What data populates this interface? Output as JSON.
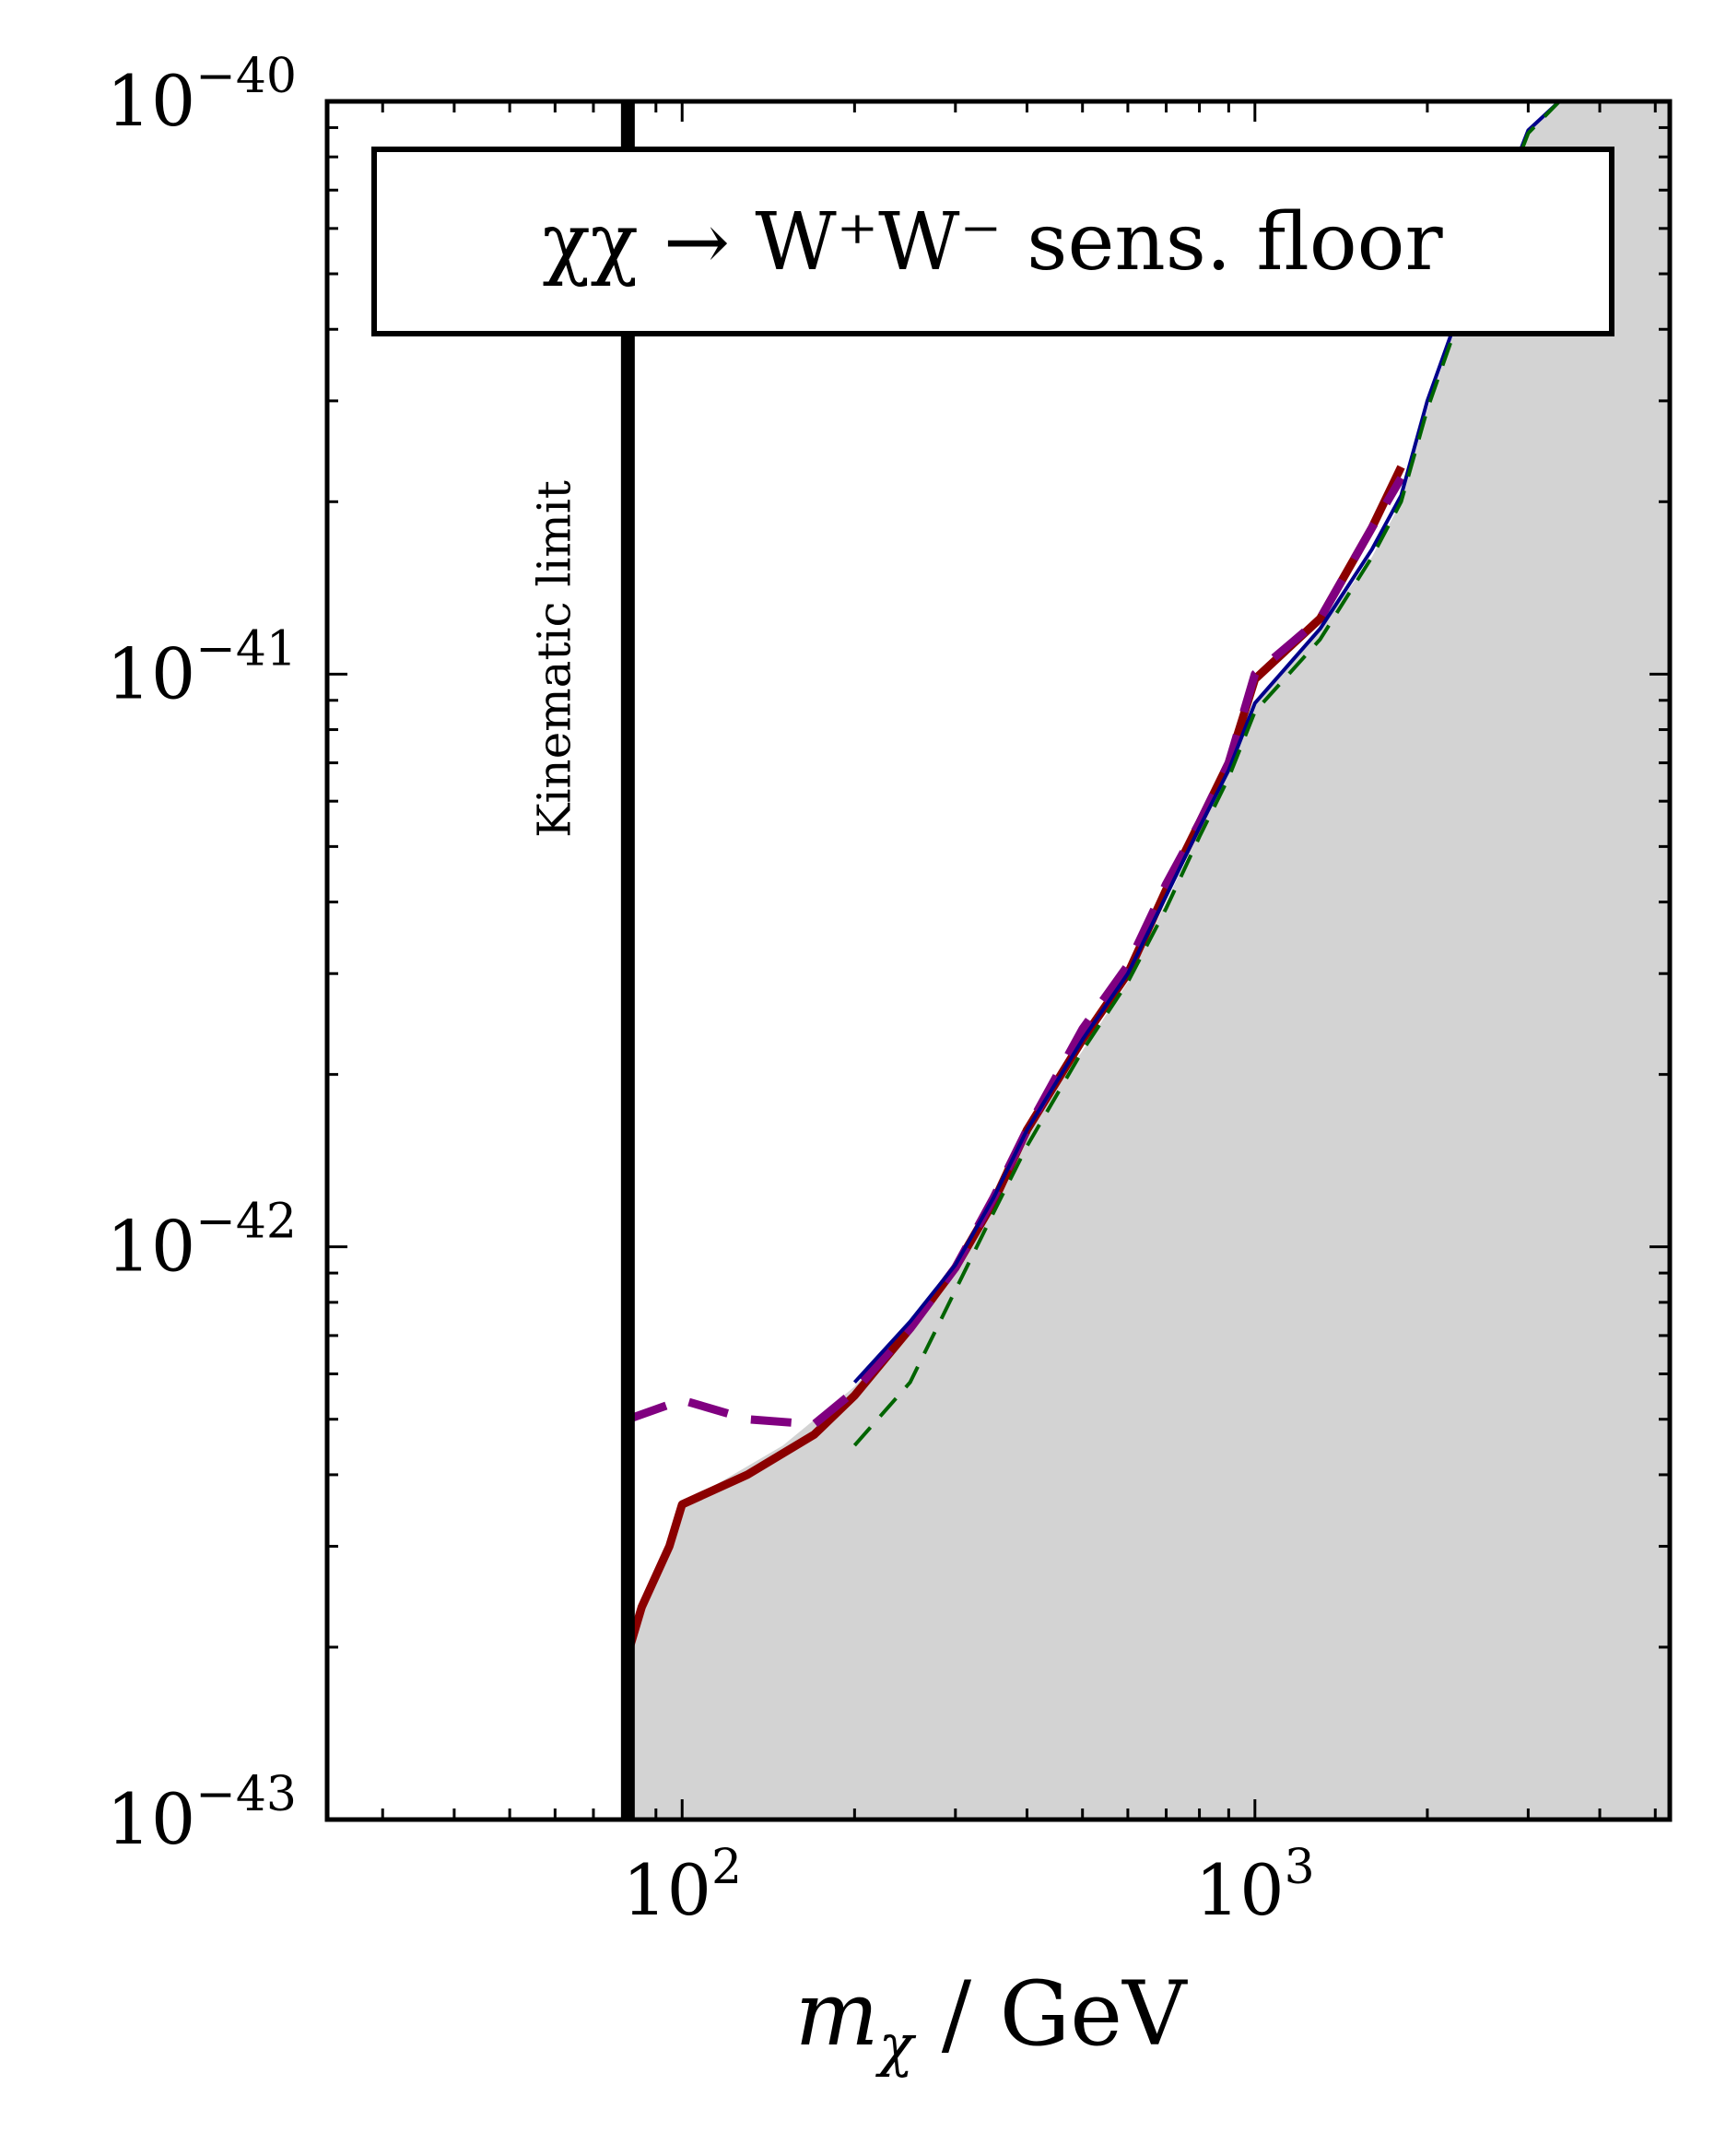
{
  "chart_data": {
    "type": "line",
    "title": "",
    "legend_box_text": "χχ → W⁺W⁻ sens. floor",
    "xlabel": "m_χ / GeV",
    "xlabel_main": "m",
    "xlabel_sub": "χ",
    "xlabel_rest": " / GeV",
    "ylabel": "",
    "xscale": "log",
    "yscale": "log",
    "xlim": [
      24,
      5300
    ],
    "ylim": [
      1e-43,
      1e-40
    ],
    "x_ticks": [
      {
        "value": 100,
        "base": "10",
        "exp": "2"
      },
      {
        "value": 1000,
        "base": "10",
        "exp": "3"
      }
    ],
    "y_ticks": [
      {
        "value": 1e-43,
        "base": "10",
        "exp": "−43"
      },
      {
        "value": 1e-42,
        "base": "10",
        "exp": "−42"
      },
      {
        "value": 1e-41,
        "base": "10",
        "exp": "−41"
      },
      {
        "value": 1e-40,
        "base": "10",
        "exp": "−40"
      }
    ],
    "grid": false,
    "vertical_line": {
      "x": 80.4,
      "label": "Kinematic limit"
    },
    "shaded_region": {
      "color": "#d3d3d3",
      "boundary": [
        [
          80.4,
          1.95e-43
        ],
        [
          85,
          2.35e-43
        ],
        [
          95,
          3e-43
        ],
        [
          100,
          3.55e-43
        ],
        [
          150,
          4.5e-43
        ],
        [
          200,
          5.7e-43
        ],
        [
          250,
          7.4e-43
        ],
        [
          300,
          9.3e-43
        ],
        [
          350,
          1.2e-42
        ],
        [
          400,
          1.6e-42
        ],
        [
          500,
          2.2e-42
        ],
        [
          600,
          2.9e-42
        ],
        [
          700,
          4e-42
        ],
        [
          800,
          5.3e-42
        ],
        [
          900,
          6.7e-42
        ],
        [
          1000,
          8.8e-42
        ],
        [
          1300,
          1.2e-41
        ],
        [
          1600,
          1.6e-41
        ],
        [
          1800,
          2e-41
        ],
        [
          2000,
          2.9e-41
        ],
        [
          2500,
          5.6e-41
        ],
        [
          3000,
          8.8e-41
        ],
        [
          3400,
          1e-40
        ],
        [
          5300,
          1e-40
        ]
      ]
    },
    "series": [
      {
        "color": "#8b0000",
        "style": "solid",
        "width": 9,
        "points": [
          [
            80.4,
            1.95e-43
          ],
          [
            85,
            2.35e-43
          ],
          [
            95,
            3e-43
          ],
          [
            100,
            3.55e-43
          ],
          [
            130,
            4e-43
          ],
          [
            170,
            4.7e-43
          ],
          [
            200,
            5.5e-43
          ],
          [
            250,
            7.2e-43
          ],
          [
            300,
            9.2e-43
          ],
          [
            350,
            1.2e-42
          ],
          [
            400,
            1.6e-42
          ],
          [
            500,
            2.3e-42
          ],
          [
            600,
            3e-42
          ],
          [
            700,
            4.2e-42
          ],
          [
            800,
            5.5e-42
          ],
          [
            900,
            7e-42
          ],
          [
            1000,
            9.8e-42
          ],
          [
            1300,
            1.25e-41
          ],
          [
            1600,
            1.8e-41
          ],
          [
            1800,
            2.3e-41
          ]
        ]
      },
      {
        "color": "#800080",
        "style": "dashed",
        "width": 9,
        "points": [
          [
            80.4,
            5e-43
          ],
          [
            100,
            5.4e-43
          ],
          [
            130,
            5e-43
          ],
          [
            170,
            4.9e-43
          ],
          [
            200,
            5.6e-43
          ],
          [
            250,
            7.2e-43
          ],
          [
            300,
            9.2e-43
          ],
          [
            350,
            1.22e-42
          ],
          [
            400,
            1.6e-42
          ],
          [
            500,
            2.4e-42
          ],
          [
            600,
            3.1e-42
          ],
          [
            700,
            4.3e-42
          ],
          [
            800,
            5.5e-42
          ],
          [
            900,
            7e-42
          ],
          [
            1000,
            1e-41
          ],
          [
            1300,
            1.25e-41
          ],
          [
            1600,
            1.8e-41
          ],
          [
            1800,
            2.2e-41
          ]
        ]
      },
      {
        "color": "#00008b",
        "style": "solid",
        "width": 4,
        "points": [
          [
            200,
            5.8e-43
          ],
          [
            250,
            7.4e-43
          ],
          [
            300,
            9.3e-43
          ],
          [
            350,
            1.22e-42
          ],
          [
            400,
            1.6e-42
          ],
          [
            500,
            2.3e-42
          ],
          [
            600,
            3e-42
          ],
          [
            700,
            4.1e-42
          ],
          [
            800,
            5.4e-42
          ],
          [
            900,
            6.8e-42
          ],
          [
            1000,
            8.9e-42
          ],
          [
            1300,
            1.2e-41
          ],
          [
            1600,
            1.65e-41
          ],
          [
            1800,
            2.05e-41
          ],
          [
            2000,
            3e-41
          ],
          [
            2500,
            5.6e-41
          ],
          [
            3000,
            8.9e-41
          ],
          [
            3400,
            1e-40
          ]
        ]
      },
      {
        "color": "#006400",
        "style": "dashed",
        "width": 4,
        "points": [
          [
            200,
            4.5e-43
          ],
          [
            250,
            5.8e-43
          ],
          [
            300,
            8.4e-43
          ],
          [
            350,
            1.15e-42
          ],
          [
            400,
            1.5e-42
          ],
          [
            500,
            2.2e-42
          ],
          [
            600,
            2.9e-42
          ],
          [
            700,
            3.9e-42
          ],
          [
            800,
            5.2e-42
          ],
          [
            900,
            6.6e-42
          ],
          [
            1000,
            8.6e-42
          ],
          [
            1300,
            1.15e-41
          ],
          [
            1600,
            1.6e-41
          ],
          [
            1800,
            2e-41
          ],
          [
            2000,
            2.9e-41
          ],
          [
            2500,
            5.5e-41
          ],
          [
            3000,
            8.8e-41
          ],
          [
            3400,
            1e-40
          ]
        ]
      }
    ]
  }
}
